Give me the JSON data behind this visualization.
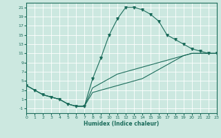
{
  "xlabel": "Humidex (Indice chaleur)",
  "background_color": "#cce8e0",
  "grid_color": "#ffffff",
  "line_color": "#1a6b5a",
  "xlim": [
    0,
    23
  ],
  "ylim": [
    -2,
    22
  ],
  "xticks": [
    0,
    1,
    2,
    3,
    4,
    5,
    6,
    7,
    8,
    9,
    10,
    11,
    12,
    13,
    14,
    15,
    16,
    17,
    18,
    19,
    20,
    21,
    22,
    23
  ],
  "yticks": [
    -1,
    1,
    3,
    5,
    7,
    9,
    11,
    13,
    15,
    17,
    19,
    21
  ],
  "curve1_x": [
    0,
    1,
    2,
    3,
    4,
    5,
    6,
    7,
    8,
    9,
    10,
    11,
    12,
    13,
    14,
    15,
    16,
    17,
    18,
    19,
    20,
    21,
    22,
    23
  ],
  "curve1_y": [
    4,
    3,
    2,
    1.5,
    1,
    0,
    -0.5,
    -0.5,
    5.5,
    10,
    15,
    18.5,
    21,
    21,
    20.5,
    19.5,
    18,
    15,
    14,
    13,
    12,
    11.5,
    11,
    11
  ],
  "curve2_x": [
    0,
    1,
    2,
    3,
    4,
    5,
    6,
    7,
    8,
    9,
    10,
    11,
    12,
    13,
    14,
    15,
    16,
    17,
    18,
    19,
    20,
    21,
    22,
    23
  ],
  "curve2_y": [
    4,
    3,
    2,
    1.5,
    1,
    0,
    -0.5,
    -0.5,
    3.5,
    4.5,
    5.5,
    6.5,
    7.0,
    7.5,
    8.0,
    8.5,
    9.0,
    9.5,
    10.0,
    10.5,
    11.0,
    11.0,
    11.0,
    11.0
  ],
  "curve3_x": [
    0,
    1,
    2,
    3,
    4,
    5,
    6,
    7,
    8,
    9,
    10,
    11,
    12,
    13,
    14,
    15,
    16,
    17,
    18,
    19,
    20,
    21,
    22,
    23
  ],
  "curve3_y": [
    4,
    3,
    2,
    1.5,
    1,
    0,
    -0.5,
    -0.5,
    2.5,
    3.0,
    3.5,
    4.0,
    4.5,
    5.0,
    5.5,
    6.5,
    7.5,
    8.5,
    9.5,
    10.5,
    11.0,
    11.0,
    11.0,
    11.0
  ]
}
